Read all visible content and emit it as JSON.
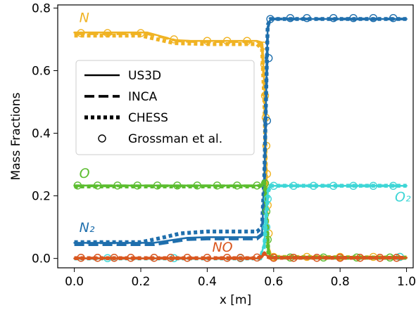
{
  "chart_data": {
    "type": "line",
    "title": "",
    "xlabel": "x [m]",
    "ylabel": "Mass Fractions",
    "xlim": [
      -0.05,
      1.02
    ],
    "ylim": [
      -0.03,
      0.81
    ],
    "xticks": [
      0.0,
      0.2,
      0.4,
      0.6,
      0.8,
      1.0
    ],
    "xtick_labels": [
      "0.0",
      "0.2",
      "0.4",
      "0.6",
      "0.8",
      "1.0"
    ],
    "yticks": [
      0.0,
      0.2,
      0.4,
      0.6,
      0.8
    ],
    "ytick_labels": [
      "0.0",
      "0.2",
      "0.4",
      "0.6",
      "0.8"
    ],
    "grid": false,
    "legend": {
      "placement": "center-left",
      "entries": [
        {
          "label": "US3D",
          "style": "solid"
        },
        {
          "label": "INCA",
          "style": "dashed"
        },
        {
          "label": "CHESS",
          "style": "dotted"
        },
        {
          "label": "Grossman et al.",
          "style": "circle"
        }
      ]
    },
    "species": [
      {
        "label": "N",
        "color": "#f0b323",
        "label_x": 0.015,
        "label_y": 0.755,
        "US3D": [
          [
            0.0,
            0.722
          ],
          [
            0.22,
            0.722
          ],
          [
            0.26,
            0.71
          ],
          [
            0.3,
            0.698
          ],
          [
            0.35,
            0.695
          ],
          [
            0.55,
            0.695
          ],
          [
            0.565,
            0.69
          ],
          [
            0.572,
            0.55
          ],
          [
            0.578,
            0.25
          ],
          [
            0.582,
            0.05
          ],
          [
            0.59,
            0.005
          ],
          [
            1.0,
            0.003
          ]
        ],
        "INCA": [
          [
            0.0,
            0.718
          ],
          [
            0.22,
            0.718
          ],
          [
            0.27,
            0.706
          ],
          [
            0.31,
            0.695
          ],
          [
            0.36,
            0.693
          ],
          [
            0.55,
            0.693
          ],
          [
            0.565,
            0.685
          ],
          [
            0.572,
            0.54
          ],
          [
            0.578,
            0.24
          ],
          [
            0.582,
            0.05
          ],
          [
            0.59,
            0.005
          ],
          [
            1.0,
            0.003
          ]
        ],
        "CHESS": [
          [
            0.0,
            0.712
          ],
          [
            0.2,
            0.712
          ],
          [
            0.25,
            0.7
          ],
          [
            0.3,
            0.688
          ],
          [
            0.4,
            0.685
          ],
          [
            0.55,
            0.685
          ],
          [
            0.565,
            0.67
          ],
          [
            0.572,
            0.5
          ],
          [
            0.578,
            0.22
          ],
          [
            0.582,
            0.04
          ],
          [
            0.59,
            0.005
          ],
          [
            1.0,
            0.003
          ]
        ],
        "Grossman": [
          [
            0.02,
            0.72
          ],
          [
            0.1,
            0.72
          ],
          [
            0.2,
            0.72
          ],
          [
            0.3,
            0.7
          ],
          [
            0.4,
            0.695
          ],
          [
            0.46,
            0.695
          ],
          [
            0.52,
            0.695
          ],
          [
            0.57,
            0.68
          ],
          [
            0.572,
            0.62
          ],
          [
            0.574,
            0.52
          ],
          [
            0.576,
            0.45
          ],
          [
            0.578,
            0.36
          ],
          [
            0.58,
            0.27
          ],
          [
            0.582,
            0.17
          ],
          [
            0.585,
            0.08
          ],
          [
            0.6,
            0.005
          ],
          [
            0.7,
            0.005
          ],
          [
            0.8,
            0.005
          ],
          [
            0.9,
            0.005
          ],
          [
            0.98,
            0.005
          ]
        ]
      },
      {
        "label": "N₂",
        "color": "#1f6fad",
        "label_x": 0.015,
        "label_y": 0.085,
        "US3D": [
          [
            0.0,
            0.05
          ],
          [
            0.24,
            0.05
          ],
          [
            0.29,
            0.058
          ],
          [
            0.34,
            0.066
          ],
          [
            0.4,
            0.068
          ],
          [
            0.55,
            0.068
          ],
          [
            0.565,
            0.08
          ],
          [
            0.572,
            0.25
          ],
          [
            0.578,
            0.55
          ],
          [
            0.582,
            0.74
          ],
          [
            0.59,
            0.765
          ],
          [
            1.0,
            0.765
          ]
        ],
        "INCA": [
          [
            0.0,
            0.044
          ],
          [
            0.24,
            0.044
          ],
          [
            0.29,
            0.052
          ],
          [
            0.34,
            0.06
          ],
          [
            0.4,
            0.062
          ],
          [
            0.55,
            0.062
          ],
          [
            0.565,
            0.075
          ],
          [
            0.572,
            0.24
          ],
          [
            0.578,
            0.54
          ],
          [
            0.582,
            0.735
          ],
          [
            0.59,
            0.765
          ],
          [
            1.0,
            0.765
          ]
        ],
        "CHESS": [
          [
            0.0,
            0.052
          ],
          [
            0.2,
            0.052
          ],
          [
            0.26,
            0.065
          ],
          [
            0.32,
            0.08
          ],
          [
            0.4,
            0.086
          ],
          [
            0.55,
            0.086
          ],
          [
            0.565,
            0.1
          ],
          [
            0.572,
            0.27
          ],
          [
            0.578,
            0.56
          ],
          [
            0.582,
            0.745
          ],
          [
            0.59,
            0.765
          ],
          [
            1.0,
            0.765
          ]
        ],
        "Grossman": [
          [
            0.58,
            0.44
          ],
          [
            0.585,
            0.64
          ],
          [
            0.59,
            0.765
          ],
          [
            0.65,
            0.768
          ],
          [
            0.7,
            0.768
          ],
          [
            0.78,
            0.768
          ],
          [
            0.84,
            0.768
          ],
          [
            0.9,
            0.768
          ],
          [
            0.96,
            0.768
          ]
        ]
      },
      {
        "label": "O",
        "color": "#5bbd2f",
        "label_x": 0.015,
        "label_y": 0.258,
        "US3D": [
          [
            0.0,
            0.233
          ],
          [
            0.55,
            0.233
          ],
          [
            0.565,
            0.235
          ],
          [
            0.572,
            0.25
          ],
          [
            0.576,
            0.22
          ],
          [
            0.58,
            0.12
          ],
          [
            0.584,
            0.03
          ],
          [
            0.59,
            0.003
          ],
          [
            1.0,
            0.002
          ]
        ],
        "INCA": [
          [
            0.0,
            0.232
          ],
          [
            0.55,
            0.232
          ],
          [
            0.565,
            0.234
          ],
          [
            0.572,
            0.245
          ],
          [
            0.576,
            0.215
          ],
          [
            0.58,
            0.11
          ],
          [
            0.584,
            0.025
          ],
          [
            0.59,
            0.003
          ],
          [
            1.0,
            0.002
          ]
        ],
        "CHESS": [
          [
            0.0,
            0.23
          ],
          [
            0.55,
            0.23
          ],
          [
            0.565,
            0.233
          ],
          [
            0.572,
            0.242
          ],
          [
            0.576,
            0.21
          ],
          [
            0.58,
            0.1
          ],
          [
            0.584,
            0.02
          ],
          [
            0.59,
            0.003
          ],
          [
            1.0,
            0.002
          ]
        ],
        "Grossman": [
          [
            0.01,
            0.233
          ],
          [
            0.07,
            0.233
          ],
          [
            0.13,
            0.233
          ],
          [
            0.19,
            0.233
          ],
          [
            0.25,
            0.233
          ],
          [
            0.31,
            0.233
          ],
          [
            0.37,
            0.233
          ],
          [
            0.43,
            0.233
          ],
          [
            0.49,
            0.233
          ],
          [
            0.55,
            0.233
          ],
          [
            0.574,
            0.24
          ],
          [
            0.578,
            0.15
          ],
          [
            0.582,
            0.06
          ],
          [
            0.65,
            0.003
          ],
          [
            0.75,
            0.003
          ],
          [
            0.85,
            0.003
          ],
          [
            0.95,
            0.003
          ]
        ]
      },
      {
        "label": "O₂",
        "color": "#3ed6d6",
        "label_x": 0.965,
        "label_y": 0.182,
        "US3D": [
          [
            0.0,
            0.0
          ],
          [
            0.56,
            0.0
          ],
          [
            0.572,
            0.05
          ],
          [
            0.578,
            0.16
          ],
          [
            0.584,
            0.225
          ],
          [
            0.59,
            0.232
          ],
          [
            1.0,
            0.232
          ]
        ],
        "INCA": [
          [
            0.0,
            0.0
          ],
          [
            0.56,
            0.0
          ],
          [
            0.572,
            0.045
          ],
          [
            0.578,
            0.15
          ],
          [
            0.584,
            0.22
          ],
          [
            0.59,
            0.232
          ],
          [
            1.0,
            0.232
          ]
        ],
        "CHESS": [
          [
            0.0,
            0.0
          ],
          [
            0.56,
            0.0
          ],
          [
            0.572,
            0.04
          ],
          [
            0.578,
            0.14
          ],
          [
            0.584,
            0.215
          ],
          [
            0.59,
            0.232
          ],
          [
            1.0,
            0.232
          ]
        ],
        "Grossman": [
          [
            0.1,
            0.001
          ],
          [
            0.3,
            0.001
          ],
          [
            0.5,
            0.001
          ],
          [
            0.578,
            0.1
          ],
          [
            0.582,
            0.19
          ],
          [
            0.6,
            0.232
          ],
          [
            0.66,
            0.232
          ],
          [
            0.72,
            0.232
          ],
          [
            0.78,
            0.232
          ],
          [
            0.84,
            0.232
          ],
          [
            0.9,
            0.232
          ],
          [
            0.96,
            0.232
          ],
          [
            0.98,
            0.005
          ]
        ]
      },
      {
        "label": "NO",
        "color": "#d9561e",
        "label_x": 0.415,
        "label_y": 0.022,
        "US3D": [
          [
            0.0,
            0.0
          ],
          [
            0.55,
            0.0
          ],
          [
            0.565,
            0.005
          ],
          [
            0.572,
            0.02
          ],
          [
            0.578,
            0.01
          ],
          [
            0.59,
            0.002
          ],
          [
            1.0,
            0.002
          ]
        ],
        "INCA": [
          [
            0.0,
            0.001
          ],
          [
            0.55,
            0.001
          ],
          [
            0.565,
            0.006
          ],
          [
            0.572,
            0.018
          ],
          [
            0.578,
            0.008
          ],
          [
            0.59,
            0.002
          ],
          [
            1.0,
            0.002
          ]
        ],
        "CHESS": [
          [
            0.0,
            0.001
          ],
          [
            0.55,
            0.001
          ],
          [
            0.565,
            0.006
          ],
          [
            0.572,
            0.016
          ],
          [
            0.578,
            0.007
          ],
          [
            0.59,
            0.002
          ],
          [
            1.0,
            0.002
          ]
        ],
        "Grossman": [
          [
            0.02,
            0.002
          ],
          [
            0.07,
            0.002
          ],
          [
            0.12,
            0.002
          ],
          [
            0.17,
            0.002
          ],
          [
            0.24,
            0.002
          ],
          [
            0.29,
            0.002
          ],
          [
            0.34,
            0.002
          ],
          [
            0.4,
            0.002
          ],
          [
            0.46,
            0.002
          ],
          [
            0.5,
            0.002
          ],
          [
            0.55,
            0.003
          ],
          [
            0.6,
            0.002
          ],
          [
            0.66,
            0.002
          ],
          [
            0.73,
            0.002
          ],
          [
            0.8,
            0.002
          ],
          [
            0.86,
            0.002
          ],
          [
            0.92,
            0.002
          ],
          [
            0.97,
            0.002
          ]
        ]
      }
    ]
  }
}
